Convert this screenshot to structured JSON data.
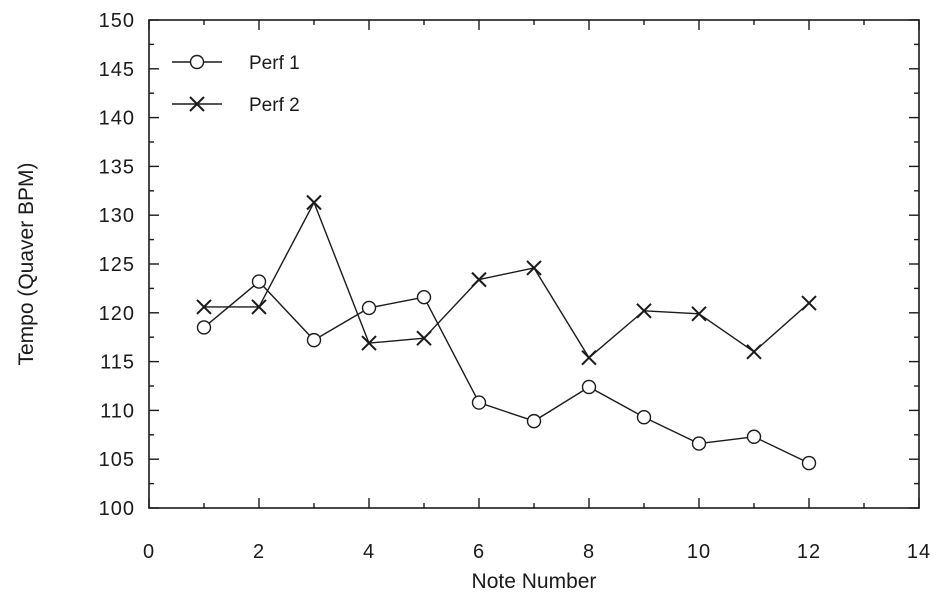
{
  "chart_data": {
    "type": "line",
    "title": "",
    "xlabel": "Note Number",
    "ylabel": "Tempo (Quaver BPM)",
    "xlim": [
      0,
      14
    ],
    "ylim": [
      100,
      150
    ],
    "xticks": [
      0,
      2,
      4,
      6,
      8,
      10,
      12,
      14
    ],
    "yticks": [
      100,
      105,
      110,
      115,
      120,
      125,
      130,
      135,
      140,
      145,
      150
    ],
    "grid": false,
    "legend": "top-left",
    "series": [
      {
        "name": "Perf 1",
        "marker": "circle",
        "color": "#1a1a1a",
        "x": [
          1,
          2,
          3,
          4,
          5,
          6,
          7,
          8,
          9,
          10,
          11,
          12
        ],
        "y": [
          118.5,
          123.2,
          117.2,
          120.5,
          121.6,
          110.8,
          108.9,
          112.4,
          109.3,
          106.6,
          107.3,
          104.6
        ]
      },
      {
        "name": "Perf 2",
        "marker": "x",
        "color": "#1a1a1a",
        "x": [
          1,
          2,
          3,
          4,
          5,
          6,
          7,
          8,
          9,
          10,
          11,
          12
        ],
        "y": [
          120.6,
          120.6,
          131.3,
          116.9,
          117.4,
          123.4,
          124.6,
          115.4,
          120.2,
          119.9,
          116.0,
          121.0
        ]
      }
    ]
  }
}
